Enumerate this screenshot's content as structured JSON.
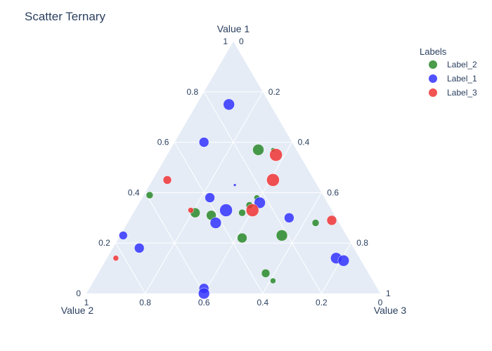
{
  "chart_data": {
    "type": "scatter_ternary",
    "title": "Scatter Ternary",
    "axes": {
      "a": {
        "title": "Value 1",
        "range": [
          0,
          1
        ],
        "tickvals": [
          0,
          0.2,
          0.4,
          0.6,
          0.8,
          1
        ],
        "ticklabels": [
          "0",
          "0.2",
          "0.4",
          "0.6",
          "0.8",
          "1"
        ]
      },
      "b": {
        "title": "Value 2",
        "range": [
          0,
          1
        ],
        "tickvals": [
          0,
          0.2,
          0.4,
          0.6,
          0.8,
          1
        ],
        "ticklabels": [
          "0",
          "0.2",
          "0.4",
          "0.6",
          "0.8",
          "1"
        ]
      },
      "c": {
        "title": "Value 3",
        "range": [
          0,
          1
        ],
        "tickvals": [
          0,
          0.2,
          0.4,
          0.6,
          0.8,
          1
        ],
        "ticklabels": [
          "0",
          "0.2",
          "0.4",
          "0.6",
          "0.8",
          "1"
        ]
      }
    },
    "grid": true,
    "legend": {
      "title": "Labels",
      "placement": "top-right"
    },
    "series": [
      {
        "name": "Label_2",
        "color": "#2a8a2a",
        "points": [
          {
            "a": 0.57,
            "b": 0.13,
            "c": 0.3,
            "size": 8
          },
          {
            "a": 0.57,
            "b": 0.08,
            "c": 0.35,
            "size": 3
          },
          {
            "a": 0.39,
            "b": 0.59,
            "c": 0.02,
            "size": 5
          },
          {
            "a": 0.38,
            "b": 0.23,
            "c": 0.39,
            "size": 4
          },
          {
            "a": 0.35,
            "b": 0.27,
            "c": 0.38,
            "size": 5
          },
          {
            "a": 0.32,
            "b": 0.47,
            "c": 0.21,
            "size": 7
          },
          {
            "a": 0.31,
            "b": 0.42,
            "c": 0.27,
            "size": 7
          },
          {
            "a": 0.32,
            "b": 0.31,
            "c": 0.37,
            "size": 5
          },
          {
            "a": 0.22,
            "b": 0.36,
            "c": 0.42,
            "size": 7
          },
          {
            "a": 0.23,
            "b": 0.22,
            "c": 0.55,
            "size": 8
          },
          {
            "a": 0.28,
            "b": 0.08,
            "c": 0.64,
            "size": 5
          },
          {
            "a": 0.08,
            "b": 0.35,
            "c": 0.57,
            "size": 6
          },
          {
            "a": 0.05,
            "b": 0.34,
            "c": 0.61,
            "size": 4
          }
        ]
      },
      {
        "name": "Label_1",
        "color": "#3333ff",
        "points": [
          {
            "a": 0.75,
            "b": 0.14,
            "c": 0.11,
            "size": 8
          },
          {
            "a": 0.6,
            "b": 0.3,
            "c": 0.1,
            "size": 7
          },
          {
            "a": 0.43,
            "b": 0.28,
            "c": 0.29,
            "size": 2
          },
          {
            "a": 0.38,
            "b": 0.39,
            "c": 0.23,
            "size": 7
          },
          {
            "a": 0.36,
            "b": 0.23,
            "c": 0.41,
            "size": 8
          },
          {
            "a": 0.33,
            "b": 0.36,
            "c": 0.31,
            "size": 9
          },
          {
            "a": 0.3,
            "b": 0.16,
            "c": 0.54,
            "size": 7
          },
          {
            "a": 0.28,
            "b": 0.42,
            "c": 0.3,
            "size": 8
          },
          {
            "a": 0.23,
            "b": 0.76,
            "c": 0.01,
            "size": 6
          },
          {
            "a": 0.18,
            "b": 0.73,
            "c": 0.09,
            "size": 7
          },
          {
            "a": 0.14,
            "b": 0.08,
            "c": 0.78,
            "size": 8
          },
          {
            "a": 0.13,
            "b": 0.06,
            "c": 0.81,
            "size": 8
          },
          {
            "a": 0.02,
            "b": 0.59,
            "c": 0.39,
            "size": 7
          },
          {
            "a": 0.0,
            "b": 0.6,
            "c": 0.4,
            "size": 8
          }
        ]
      },
      {
        "name": "Label_3",
        "color": "#f03535",
        "points": [
          {
            "a": 0.55,
            "b": 0.08,
            "c": 0.37,
            "size": 9
          },
          {
            "a": 0.45,
            "b": 0.14,
            "c": 0.41,
            "size": 9
          },
          {
            "a": 0.45,
            "b": 0.5,
            "c": 0.05,
            "size": 6
          },
          {
            "a": 0.33,
            "b": 0.27,
            "c": 0.4,
            "size": 9
          },
          {
            "a": 0.33,
            "b": 0.48,
            "c": 0.19,
            "size": 4
          },
          {
            "a": 0.29,
            "b": 0.02,
            "c": 0.69,
            "size": 7
          },
          {
            "a": 0.14,
            "b": 0.83,
            "c": 0.03,
            "size": 4
          }
        ]
      }
    ]
  }
}
